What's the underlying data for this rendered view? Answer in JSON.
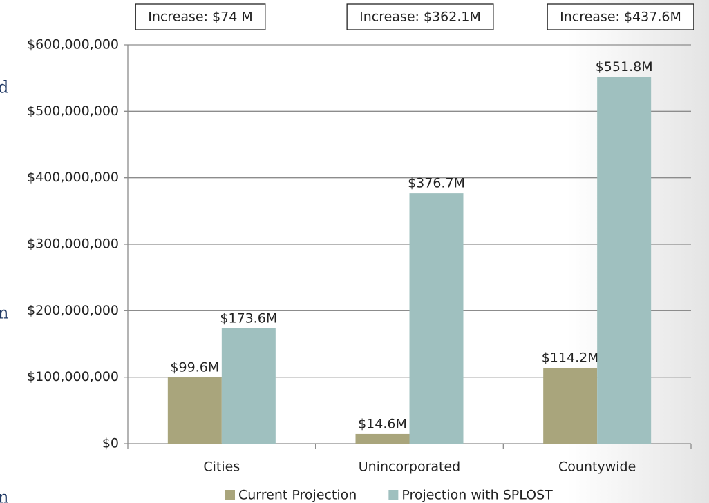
{
  "background_text": [
    "d",
    "n",
    "n"
  ],
  "chart_data": {
    "type": "bar",
    "annotations": [
      "Increase: $74 M",
      "Increase: $362.1M",
      "Increase: $437.6M"
    ],
    "categories": [
      "Cities",
      "Unincorporated",
      "Countywide"
    ],
    "series": [
      {
        "name": "Current Projection",
        "color": "#a9a57c",
        "values": [
          99600000,
          14600000,
          114200000
        ],
        "value_labels": [
          "$99.6M",
          "$14.6M",
          "$114.2M"
        ]
      },
      {
        "name": "Projection with SPLOST",
        "color": "#9fc0bf",
        "values": [
          173600000,
          376700000,
          551800000
        ],
        "value_labels": [
          "$173.6M",
          "$376.7M",
          "$551.8M"
        ]
      }
    ],
    "ylim": [
      0,
      600000000
    ],
    "yticks": [
      {
        "value": 0,
        "label": "$0"
      },
      {
        "value": 100000000,
        "label": "$100,000,000"
      },
      {
        "value": 200000000,
        "label": "$200,000,000"
      },
      {
        "value": 300000000,
        "label": "$300,000,000"
      },
      {
        "value": 400000000,
        "label": "$400,000,000"
      },
      {
        "value": 500000000,
        "label": "$500,000,000"
      },
      {
        "value": 600000000,
        "label": "$600,000,000"
      }
    ],
    "grid": true,
    "legend": "bottom"
  }
}
